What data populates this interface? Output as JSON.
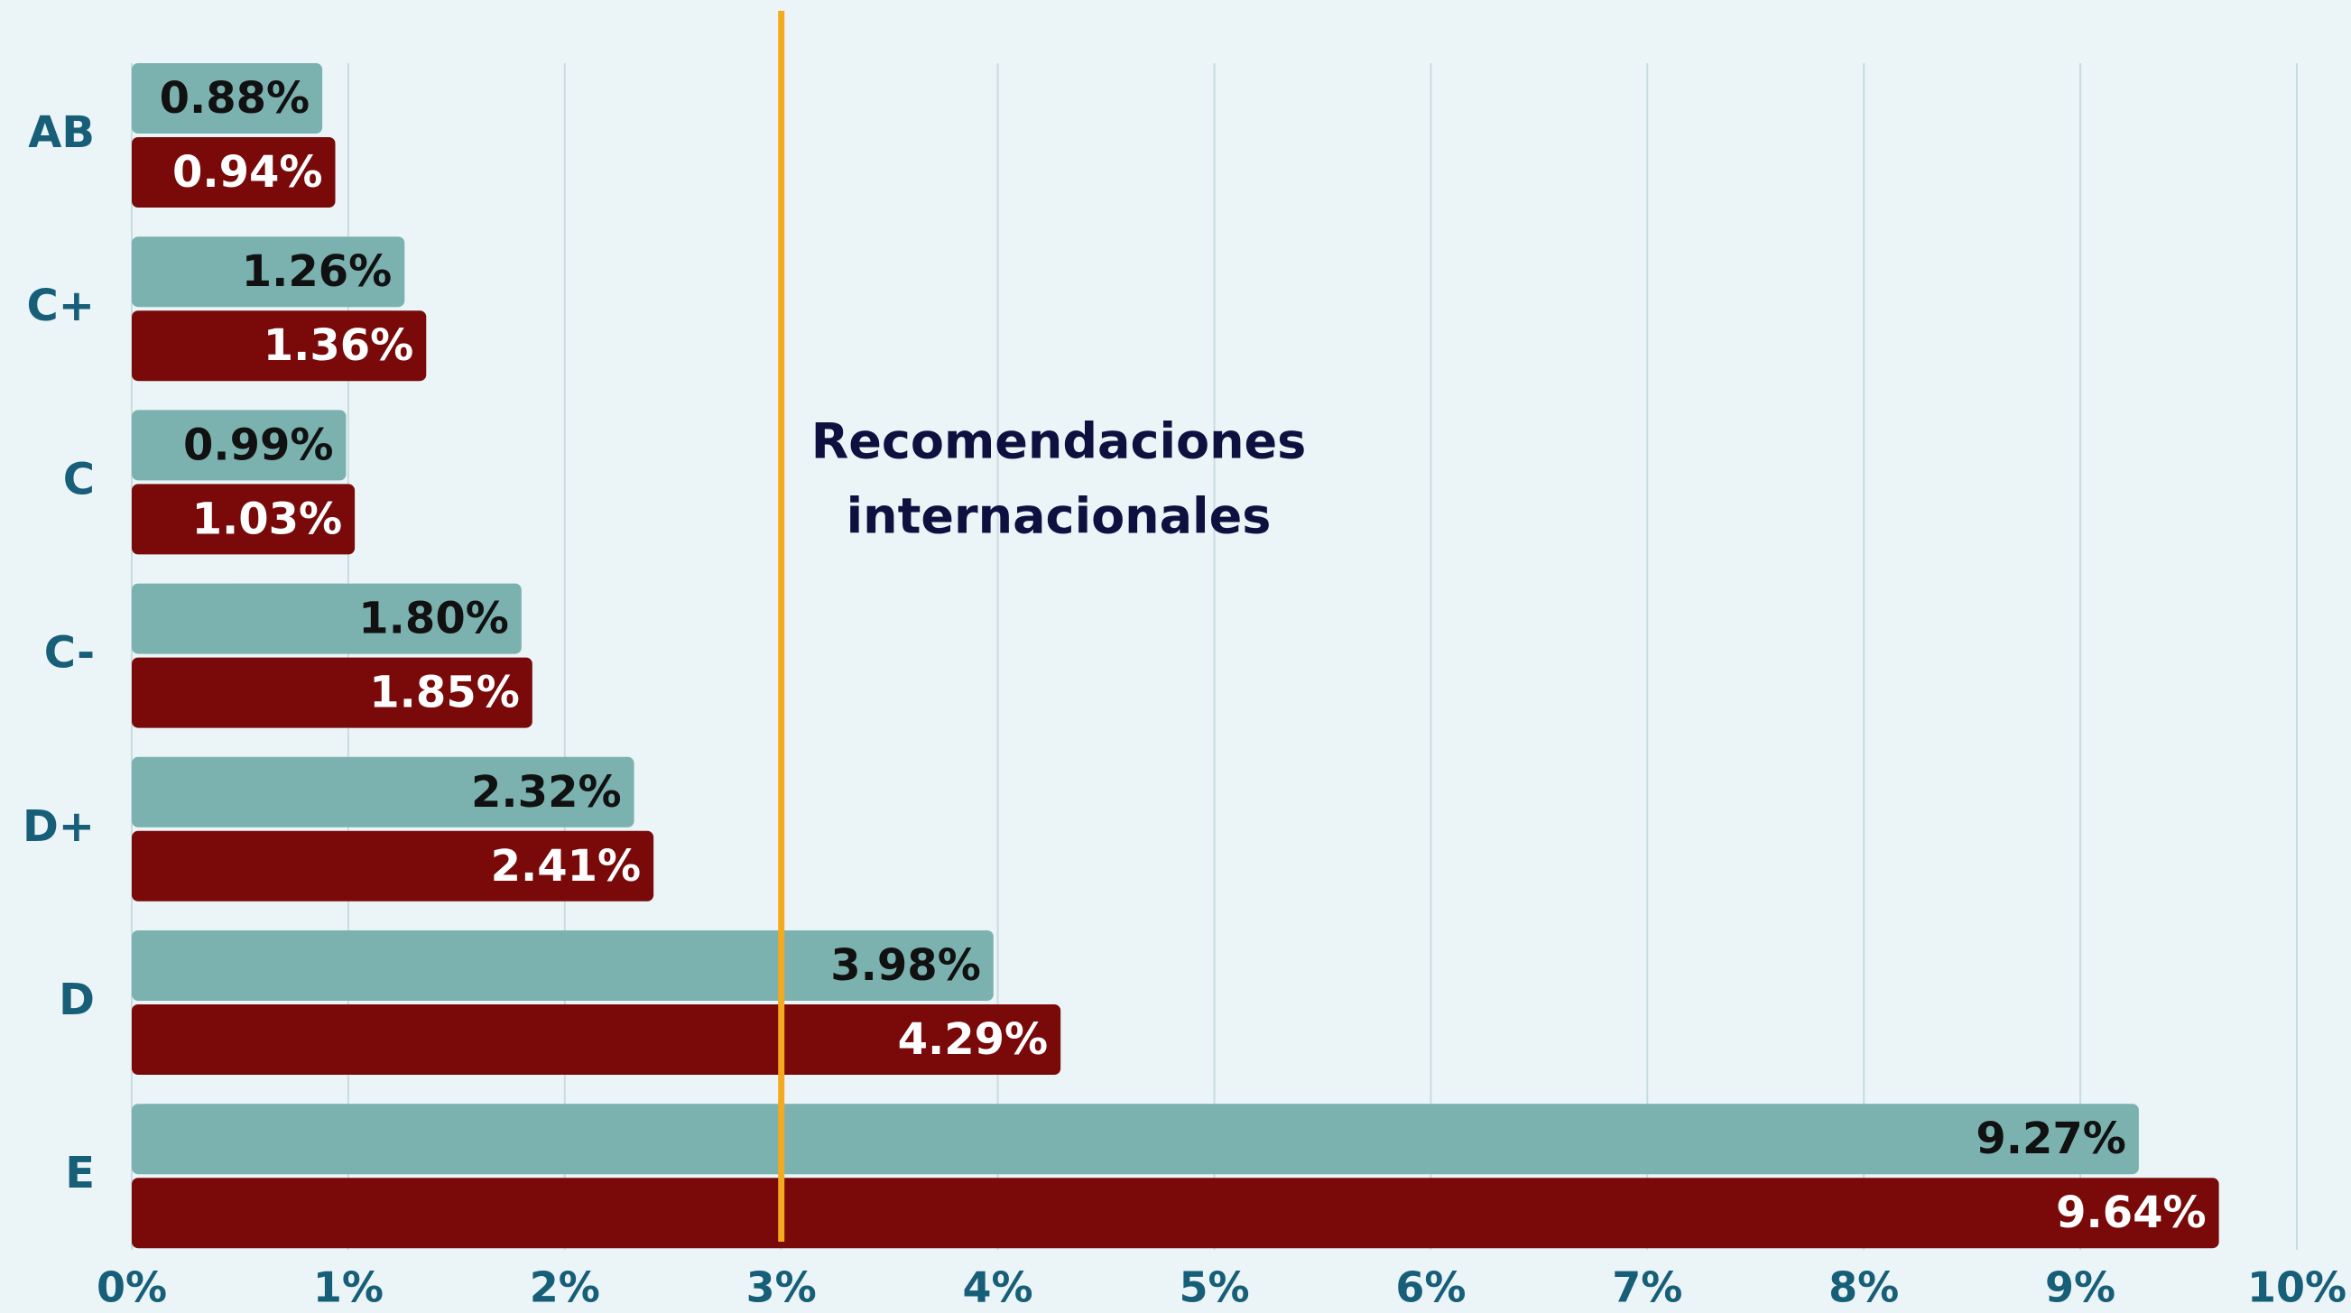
{
  "chart_data": {
    "type": "bar",
    "orientation": "horizontal",
    "categories": [
      "AB",
      "C+",
      "C",
      "C-",
      "D+",
      "D",
      "E"
    ],
    "series": [
      {
        "color": "#7bb2b0",
        "values": [
          0.88,
          1.26,
          0.99,
          1.8,
          2.32,
          3.98,
          9.27
        ],
        "value_labels": [
          "0.88%",
          "1.26%",
          "0.99%",
          "1.80%",
          "2.32%",
          "3.98%",
          "9.27%"
        ]
      },
      {
        "color": "#7a0a0a",
        "values": [
          0.94,
          1.36,
          1.03,
          1.85,
          2.41,
          4.29,
          9.64
        ],
        "value_labels": [
          "0.94%",
          "1.36%",
          "1.03%",
          "1.85%",
          "2.41%",
          "4.29%",
          "9.64%"
        ]
      }
    ],
    "xlim": [
      0,
      10
    ],
    "xticks": [
      {
        "value": 0,
        "label": "0%"
      },
      {
        "value": 1,
        "label": "1%"
      },
      {
        "value": 2,
        "label": "2%"
      },
      {
        "value": 3,
        "label": "3%"
      },
      {
        "value": 4,
        "label": "4%"
      },
      {
        "value": 5,
        "label": "5%"
      },
      {
        "value": 6,
        "label": "6%"
      },
      {
        "value": 7,
        "label": "7%"
      },
      {
        "value": 8,
        "label": "8%"
      },
      {
        "value": 9,
        "label": "9%"
      },
      {
        "value": 10,
        "label": "10%"
      }
    ],
    "grid": true,
    "reference_line": {
      "value": 3,
      "color": "#f5a91f",
      "label": [
        "Recomendaciones",
        "internacionales"
      ]
    }
  }
}
